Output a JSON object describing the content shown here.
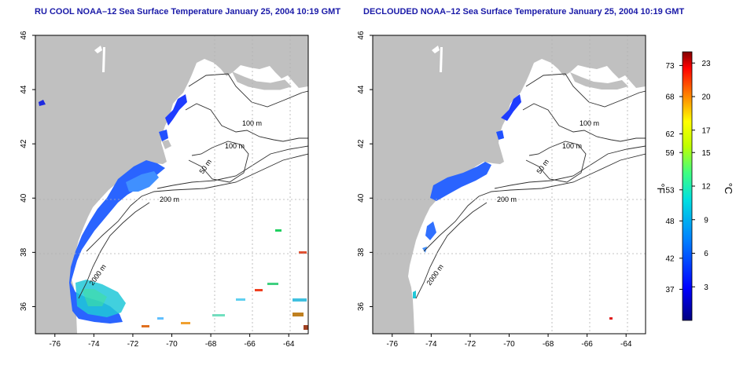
{
  "panels": [
    {
      "title": "RU COOL NOAA–12 Sea Surface Temperature January 25, 2004 10:19 GMT",
      "x_ticks": [
        "-76",
        "-74",
        "-72",
        "-70",
        "-68",
        "-66",
        "-64"
      ],
      "y_ticks": [
        "36",
        "38",
        "40",
        "42",
        "44",
        "46"
      ],
      "contour_labels": [
        "100 m",
        "100 m",
        "50 m",
        "200 m",
        "2000 m"
      ]
    },
    {
      "title": "DECLOUDED NOAA–12 Sea Surface Temperature January 25, 2004 10:19 GMT",
      "x_ticks": [
        "-76",
        "-74",
        "-72",
        "-70",
        "-68",
        "-66",
        "-64"
      ],
      "y_ticks": [
        "36",
        "38",
        "40",
        "42",
        "44",
        "46"
      ],
      "contour_labels": [
        "100 m",
        "100 m",
        "50 m",
        "200 m",
        "2000 m"
      ]
    }
  ],
  "colorbar": {
    "fahrenheit_ticks": [
      "73",
      "68",
      "62",
      "59",
      "53",
      "48",
      "42",
      "37"
    ],
    "celsius_ticks": [
      "23",
      "20",
      "17",
      "15",
      "12",
      "9",
      "6",
      "3"
    ],
    "fahrenheit_label": "°F",
    "celsius_label": "°C"
  },
  "colors": {
    "land": "#c0c0c0",
    "ocean": "#ffffff",
    "title": "#1a1aa8",
    "cold": "#0000c8",
    "warm": "#c80000"
  },
  "chart_data": {
    "type": "heatmap",
    "x_range": [
      -77,
      -63
    ],
    "y_range": [
      35,
      46
    ],
    "colorbar_range_c": [
      0,
      24
    ],
    "grid": true
  }
}
